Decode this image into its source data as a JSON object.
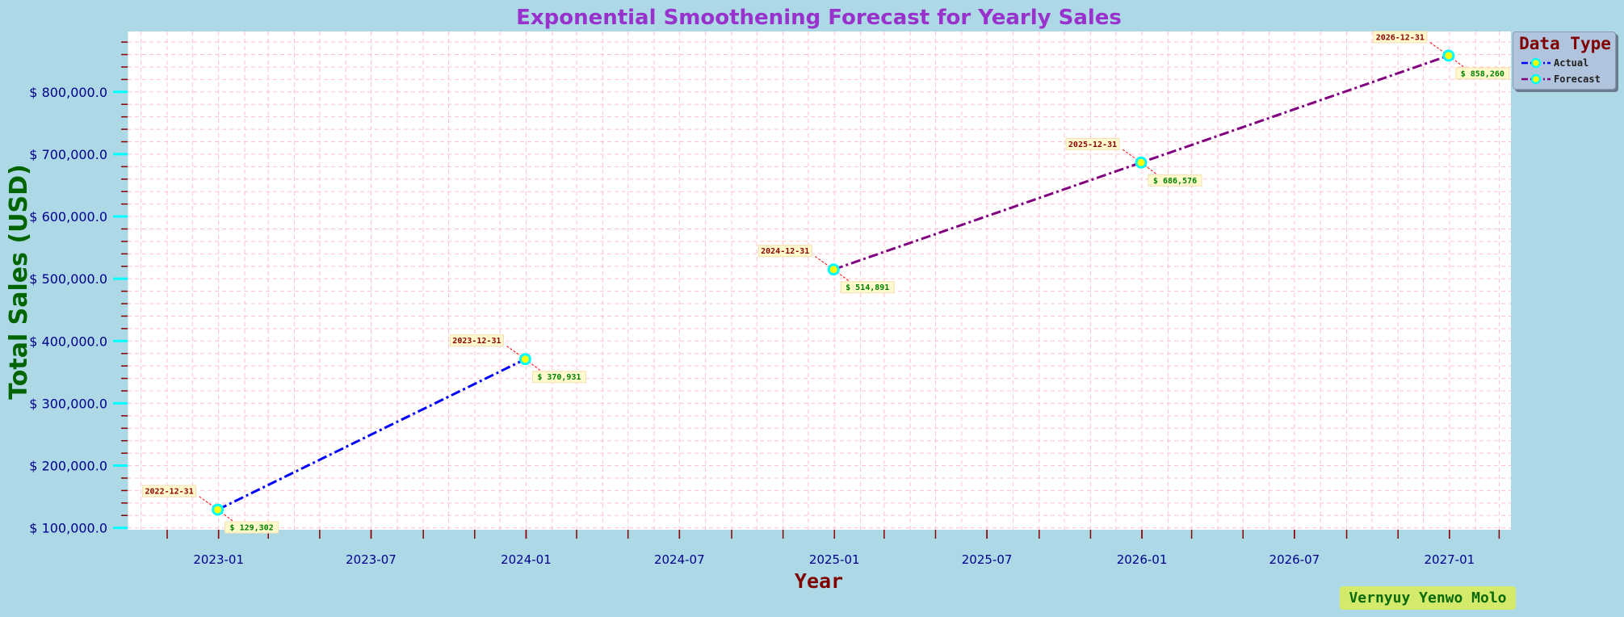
{
  "chart_data": {
    "type": "line",
    "title": "Exponential Smoothening Forecast for Yearly Sales",
    "xlabel": "Year",
    "ylabel": "Total Sales (USD)",
    "x_tick_labels": [
      "2023-01",
      "2023-07",
      "2024-01",
      "2024-07",
      "2025-01",
      "2025-07",
      "2026-01",
      "2026-07",
      "2027-01"
    ],
    "y_tick_labels": [
      "$ 100,000.0",
      "$ 200,000.0",
      "$ 300,000.0",
      "$ 400,000.0",
      "$ 500,000.0",
      "$ 600,000.0",
      "$ 700,000.0",
      "$ 800,000.0"
    ],
    "y_ticks": [
      100000,
      200000,
      300000,
      400000,
      500000,
      600000,
      700000,
      800000
    ],
    "ylim": [
      97000,
      897000
    ],
    "xlim": [
      "2022-09-15",
      "2027-03-15"
    ],
    "grid": true,
    "legend_title": "Data Type",
    "legend_placement": "top-right outside",
    "series": [
      {
        "name": "Actual",
        "color": "#0000ff",
        "points": [
          {
            "x": "2022-12-31",
            "y": 129302,
            "value_label": "$ 129,302"
          },
          {
            "x": "2023-12-31",
            "y": 370931,
            "value_label": "$ 370,931"
          }
        ]
      },
      {
        "name": "Forecast",
        "color": "#800080",
        "points": [
          {
            "x": "2024-12-31",
            "y": 514891,
            "value_label": "$ 514,891"
          },
          {
            "x": "2025-12-31",
            "y": 686576,
            "value_label": "$ 686,576"
          },
          {
            "x": "2026-12-31",
            "y": 858260,
            "value_label": "$ 858,260"
          }
        ]
      }
    ],
    "marker_face_color": "#ffff00",
    "marker_edge_color": "#00ffff"
  },
  "watermark": "Vernyuy Yenwo Molo"
}
